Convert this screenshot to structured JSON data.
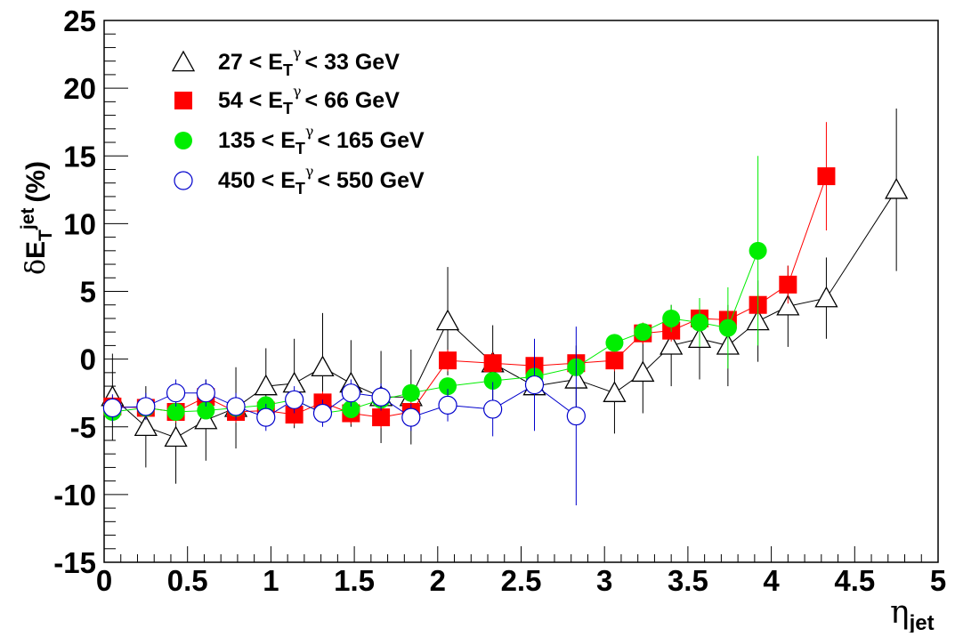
{
  "chart_data": {
    "type": "scatter",
    "xlabel": {
      "symbol": "η",
      "sub": "jet"
    },
    "ylabel": {
      "prefix": "δ",
      "main": "E",
      "sub": "T",
      "sup": "jet",
      "unit": "(%)"
    },
    "xlim": [
      0,
      5
    ],
    "ylim": [
      -15,
      25
    ],
    "x_ticks": [
      {
        "value": 0,
        "label": "0"
      },
      {
        "value": 0.5,
        "label": "0.5"
      },
      {
        "value": 1,
        "label": "1"
      },
      {
        "value": 1.5,
        "label": "1.5"
      },
      {
        "value": 2,
        "label": "2"
      },
      {
        "value": 2.5,
        "label": "2.5"
      },
      {
        "value": 3,
        "label": "3"
      },
      {
        "value": 3.5,
        "label": "3.5"
      },
      {
        "value": 4,
        "label": "4"
      },
      {
        "value": 4.5,
        "label": "4.5"
      },
      {
        "value": 5,
        "label": "5"
      }
    ],
    "y_ticks": [
      {
        "value": -15,
        "label": "-15"
      },
      {
        "value": -10,
        "label": "-10"
      },
      {
        "value": -5,
        "label": "-5"
      },
      {
        "value": 0,
        "label": "0"
      },
      {
        "value": 5,
        "label": "5"
      },
      {
        "value": 10,
        "label": "10"
      },
      {
        "value": 15,
        "label": "15"
      },
      {
        "value": 20,
        "label": "20"
      },
      {
        "value": 25,
        "label": "25"
      }
    ],
    "grid": false,
    "legend_position": "top-left",
    "series": [
      {
        "name": "27 < E_T^γ < 33 GeV",
        "legend": {
          "lo": "27 < E",
          "hi": "< 33 GeV"
        },
        "marker": "open-triangle",
        "color": "#000000",
        "points": [
          {
            "x": 0.05,
            "y": -2.8,
            "err": 3.2
          },
          {
            "x": 0.25,
            "y": -5.0,
            "err": 3.0
          },
          {
            "x": 0.43,
            "y": -5.8,
            "err": 3.4
          },
          {
            "x": 0.61,
            "y": -4.5,
            "err": 3.0
          },
          {
            "x": 0.79,
            "y": -3.6,
            "err": 3.0
          },
          {
            "x": 0.97,
            "y": -2.0,
            "err": 2.8
          },
          {
            "x": 1.14,
            "y": -1.8,
            "err": 3.3
          },
          {
            "x": 1.31,
            "y": -0.6,
            "err": 4.0
          },
          {
            "x": 1.48,
            "y": -1.8,
            "err": 3.2
          },
          {
            "x": 1.66,
            "y": -2.8,
            "err": 3.4
          },
          {
            "x": 1.84,
            "y": -2.8,
            "err": 3.5
          },
          {
            "x": 2.06,
            "y": 2.8,
            "err": 4.0
          },
          {
            "x": 2.33,
            "y": -0.3,
            "err": 2.8
          },
          {
            "x": 2.58,
            "y": -2.0,
            "err": 3.0
          },
          {
            "x": 2.83,
            "y": -1.5,
            "err": 2.5
          },
          {
            "x": 3.06,
            "y": -2.5,
            "err": 3.0
          },
          {
            "x": 3.23,
            "y": -1.0,
            "err": 3.0
          },
          {
            "x": 3.4,
            "y": 1.0,
            "err": 3.0
          },
          {
            "x": 3.57,
            "y": 1.5,
            "err": 3.0
          },
          {
            "x": 3.74,
            "y": 1.0,
            "err": 3.0
          },
          {
            "x": 3.92,
            "y": 2.8,
            "err": 3.0
          },
          {
            "x": 4.1,
            "y": 3.9,
            "err": 3.0
          },
          {
            "x": 4.33,
            "y": 4.5,
            "err": 3.0
          },
          {
            "x": 4.75,
            "y": 12.5,
            "err": 6.0
          }
        ]
      },
      {
        "name": "54 < E_T^γ < 66 GeV",
        "legend": {
          "lo": "54 < E",
          "hi": "< 66 GeV"
        },
        "marker": "filled-square",
        "color": "#ff0000",
        "points": [
          {
            "x": 0.05,
            "y": -3.5,
            "err": 0.8
          },
          {
            "x": 0.25,
            "y": -3.6,
            "err": 0.8
          },
          {
            "x": 0.43,
            "y": -3.9,
            "err": 0.8
          },
          {
            "x": 0.61,
            "y": -2.8,
            "err": 0.8
          },
          {
            "x": 0.79,
            "y": -3.9,
            "err": 0.8
          },
          {
            "x": 0.97,
            "y": -3.8,
            "err": 0.8
          },
          {
            "x": 1.14,
            "y": -4.1,
            "err": 0.8
          },
          {
            "x": 1.31,
            "y": -3.2,
            "err": 0.8
          },
          {
            "x": 1.48,
            "y": -4.0,
            "err": 0.8
          },
          {
            "x": 1.66,
            "y": -4.3,
            "err": 0.8
          },
          {
            "x": 1.84,
            "y": -3.9,
            "err": 0.8
          },
          {
            "x": 2.06,
            "y": -0.1,
            "err": 0.8
          },
          {
            "x": 2.33,
            "y": -0.3,
            "err": 0.8
          },
          {
            "x": 2.58,
            "y": -0.5,
            "err": 0.8
          },
          {
            "x": 2.83,
            "y": -0.3,
            "err": 0.8
          },
          {
            "x": 3.06,
            "y": -0.1,
            "err": 0.8
          },
          {
            "x": 3.23,
            "y": 1.9,
            "err": 0.8
          },
          {
            "x": 3.4,
            "y": 2.1,
            "err": 0.8
          },
          {
            "x": 3.57,
            "y": 3.0,
            "err": 0.8
          },
          {
            "x": 3.74,
            "y": 2.9,
            "err": 0.8
          },
          {
            "x": 3.92,
            "y": 4.0,
            "err": 0.8
          },
          {
            "x": 4.1,
            "y": 5.5,
            "err": 1.4
          },
          {
            "x": 4.33,
            "y": 13.5,
            "err": 4.0
          }
        ]
      },
      {
        "name": "135 < E_T^γ < 165 GeV",
        "legend": {
          "lo": "135 < E",
          "hi": "< 165 GeV"
        },
        "marker": "filled-circle",
        "color": "#00ee00",
        "points": [
          {
            "x": 0.05,
            "y": -3.9,
            "err": 0.6
          },
          {
            "x": 0.25,
            "y": -3.6,
            "err": 0.6
          },
          {
            "x": 0.43,
            "y": -3.9,
            "err": 0.6
          },
          {
            "x": 0.61,
            "y": -3.8,
            "err": 0.6
          },
          {
            "x": 0.79,
            "y": -3.6,
            "err": 0.6
          },
          {
            "x": 0.97,
            "y": -3.4,
            "err": 0.6
          },
          {
            "x": 1.14,
            "y": -3.0,
            "err": 0.6
          },
          {
            "x": 1.31,
            "y": -4.0,
            "err": 0.6
          },
          {
            "x": 1.48,
            "y": -3.7,
            "err": 0.6
          },
          {
            "x": 1.66,
            "y": -3.0,
            "err": 0.6
          },
          {
            "x": 1.84,
            "y": -2.5,
            "err": 0.6
          },
          {
            "x": 2.06,
            "y": -2.0,
            "err": 0.6
          },
          {
            "x": 2.33,
            "y": -1.6,
            "err": 0.6
          },
          {
            "x": 2.58,
            "y": -1.3,
            "err": 0.6
          },
          {
            "x": 2.83,
            "y": -0.6,
            "err": 0.6
          },
          {
            "x": 3.06,
            "y": 1.2,
            "err": 0.6
          },
          {
            "x": 3.23,
            "y": 2.0,
            "err": 0.6
          },
          {
            "x": 3.4,
            "y": 3.0,
            "err": 1.0
          },
          {
            "x": 3.57,
            "y": 2.7,
            "err": 1.8
          },
          {
            "x": 3.74,
            "y": 2.3,
            "err": 3.0
          },
          {
            "x": 3.92,
            "y": 8.0,
            "err": 7.0
          }
        ]
      },
      {
        "name": "450 < E_T^γ < 550 GeV",
        "legend": {
          "lo": "450 < E",
          "hi": "< 550 GeV"
        },
        "marker": "open-circle",
        "color": "#0000cc",
        "points": [
          {
            "x": 0.05,
            "y": -3.6,
            "err": 1.0
          },
          {
            "x": 0.25,
            "y": -3.5,
            "err": 1.0
          },
          {
            "x": 0.43,
            "y": -2.5,
            "err": 1.0
          },
          {
            "x": 0.61,
            "y": -2.5,
            "err": 1.0
          },
          {
            "x": 0.79,
            "y": -3.5,
            "err": 1.0
          },
          {
            "x": 0.97,
            "y": -4.3,
            "err": 1.0
          },
          {
            "x": 1.14,
            "y": -3.0,
            "err": 1.0
          },
          {
            "x": 1.31,
            "y": -4.0,
            "err": 1.0
          },
          {
            "x": 1.48,
            "y": -2.5,
            "err": 1.0
          },
          {
            "x": 1.66,
            "y": -2.8,
            "err": 1.0
          },
          {
            "x": 1.84,
            "y": -4.3,
            "err": 1.0
          },
          {
            "x": 2.06,
            "y": -3.4,
            "err": 1.2
          },
          {
            "x": 2.33,
            "y": -3.7,
            "err": 2.0
          },
          {
            "x": 2.58,
            "y": -1.9,
            "err": 3.4
          },
          {
            "x": 2.83,
            "y": -4.2,
            "err": 6.6
          }
        ]
      }
    ]
  },
  "legend": {
    "suffix_sub": "T",
    "suffix_sup": "γ"
  }
}
